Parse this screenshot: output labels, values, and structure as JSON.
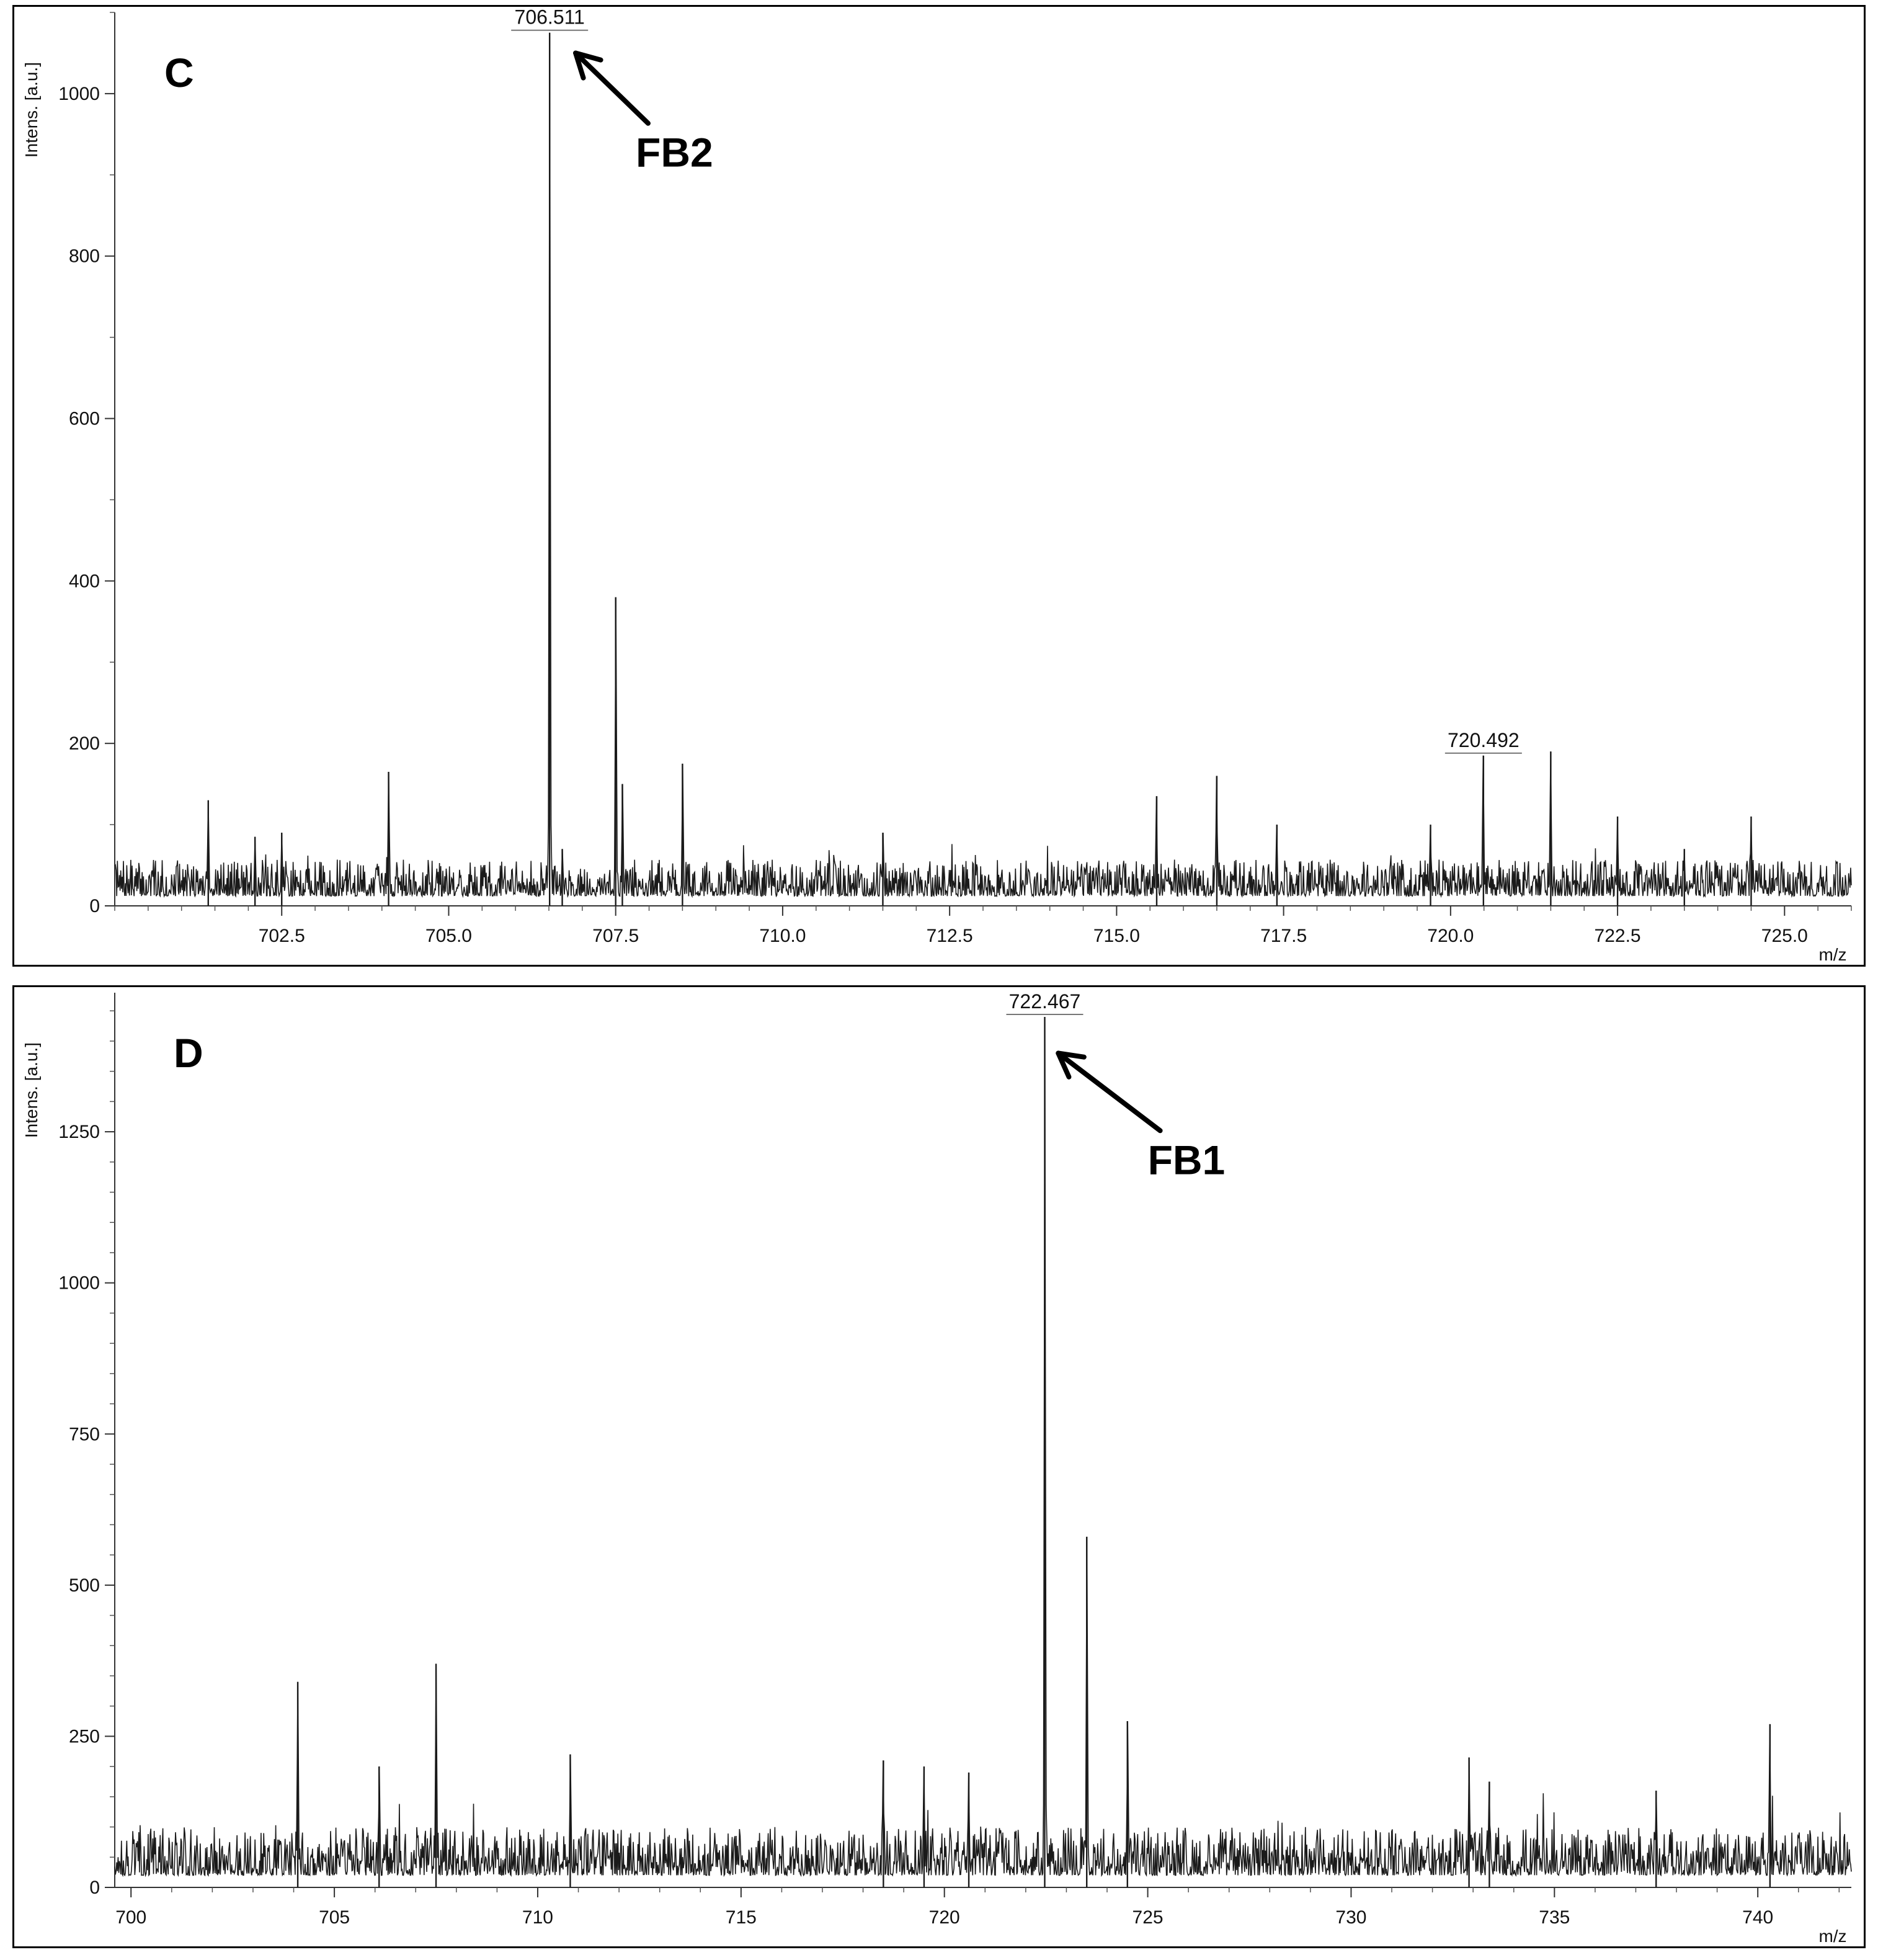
{
  "chart_data": [
    {
      "type": "line",
      "panel_label": "C",
      "ylabel": "Intens. [a.u.]",
      "xlabel": "m/z",
      "xlim": [
        700.0,
        726.0
      ],
      "ylim": [
        0,
        1100
      ],
      "x_ticks": [
        "702.5",
        "705.0",
        "707.5",
        "710.0",
        "712.5",
        "715.0",
        "717.5",
        "720.0",
        "722.5",
        "725.0"
      ],
      "x_tick_values": [
        702.5,
        705.0,
        707.5,
        710.0,
        712.5,
        715.0,
        717.5,
        720.0,
        722.5,
        725.0
      ],
      "x_minor_step": 0.5,
      "y_ticks": [
        "0",
        "200",
        "400",
        "600",
        "800",
        "1000"
      ],
      "y_tick_values": [
        0,
        200,
        400,
        600,
        800,
        1000
      ],
      "y_minor_step": 100,
      "grid": false,
      "noise": {
        "baseline": 12,
        "amplitude": 45,
        "seed": 7
      },
      "peaks": [
        {
          "x": 701.4,
          "y": 130
        },
        {
          "x": 702.1,
          "y": 85
        },
        {
          "x": 702.5,
          "y": 90
        },
        {
          "x": 704.1,
          "y": 165
        },
        {
          "x": 706.511,
          "y": 1075
        },
        {
          "x": 706.7,
          "y": 70
        },
        {
          "x": 707.5,
          "y": 380
        },
        {
          "x": 707.6,
          "y": 150
        },
        {
          "x": 708.5,
          "y": 175
        },
        {
          "x": 711.5,
          "y": 90
        },
        {
          "x": 715.6,
          "y": 135
        },
        {
          "x": 716.5,
          "y": 160
        },
        {
          "x": 717.4,
          "y": 100
        },
        {
          "x": 719.7,
          "y": 100
        },
        {
          "x": 720.492,
          "y": 185
        },
        {
          "x": 721.5,
          "y": 190
        },
        {
          "x": 722.5,
          "y": 110
        },
        {
          "x": 723.5,
          "y": 70
        },
        {
          "x": 724.5,
          "y": 110
        }
      ],
      "peak_labels": [
        {
          "x": 706.511,
          "y": 1075,
          "text": "706.511"
        },
        {
          "x": 720.492,
          "y": 185,
          "text": "720.492"
        }
      ],
      "annotations": [
        {
          "text": "FB2",
          "x": 707.8,
          "y": 910,
          "arrow_to_x": 706.9,
          "arrow_to_y": 1050
        }
      ]
    },
    {
      "type": "line",
      "panel_label": "D",
      "ylabel": "Intens. [a.u.]",
      "xlabel": "m/z",
      "xlim": [
        699.6,
        742.3
      ],
      "ylim": [
        0,
        1480
      ],
      "x_ticks": [
        "700",
        "705",
        "710",
        "715",
        "720",
        "725",
        "730",
        "735",
        "740"
      ],
      "x_tick_values": [
        700,
        705,
        710,
        715,
        720,
        725,
        730,
        735,
        740
      ],
      "x_minor_step": 1,
      "y_ticks": [
        "0",
        "250",
        "500",
        "750",
        "1000",
        "1250"
      ],
      "y_tick_values": [
        0,
        250,
        500,
        750,
        1000,
        1250
      ],
      "y_minor_step": 50,
      "grid": false,
      "noise": {
        "baseline": 20,
        "amplitude": 80,
        "seed": 13
      },
      "peaks": [
        {
          "x": 704.1,
          "y": 340
        },
        {
          "x": 706.1,
          "y": 200
        },
        {
          "x": 707.5,
          "y": 370
        },
        {
          "x": 710.8,
          "y": 220
        },
        {
          "x": 718.5,
          "y": 210
        },
        {
          "x": 719.5,
          "y": 200
        },
        {
          "x": 720.6,
          "y": 190
        },
        {
          "x": 722.467,
          "y": 1440
        },
        {
          "x": 723.5,
          "y": 580
        },
        {
          "x": 724.5,
          "y": 275
        },
        {
          "x": 732.9,
          "y": 215
        },
        {
          "x": 733.4,
          "y": 175
        },
        {
          "x": 737.5,
          "y": 160
        },
        {
          "x": 740.3,
          "y": 270
        }
      ],
      "peak_labels": [
        {
          "x": 722.467,
          "y": 1440,
          "text": "722.467"
        }
      ],
      "annotations": [
        {
          "text": "FB1",
          "x": 725.0,
          "y": 1180,
          "arrow_to_x": 722.8,
          "arrow_to_y": 1380
        }
      ]
    }
  ]
}
